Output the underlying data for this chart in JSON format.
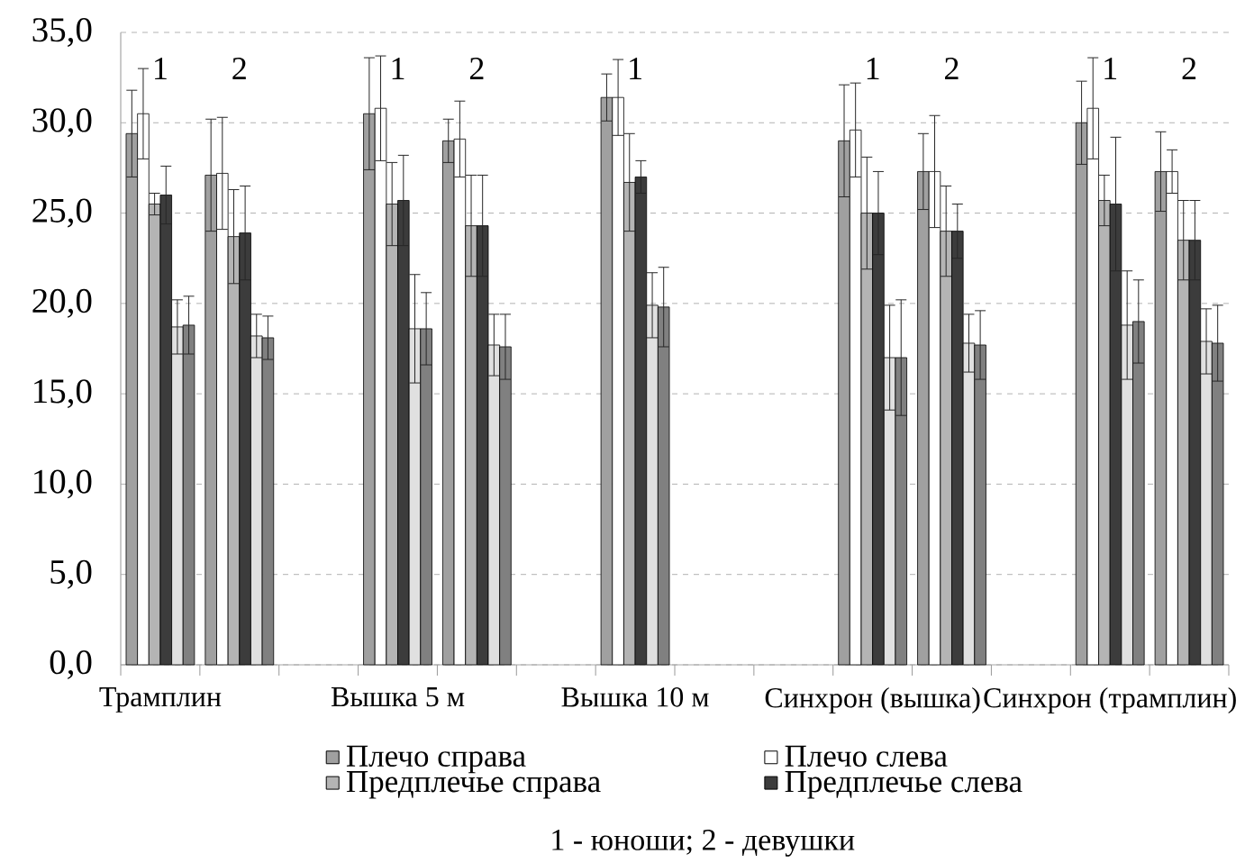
{
  "chart_data": {
    "type": "bar",
    "categories": [
      "Трамплин",
      null,
      null,
      "Вышка 5 м",
      null,
      null,
      "Вышка 10 м",
      null,
      null,
      "Синхрон (вышка)",
      null,
      null,
      "Синхрон (трамплин)",
      null
    ],
    "series": [
      {
        "name": "Плечо справа",
        "color": "#a0a0a0",
        "values": [
          29.4,
          27.1,
          null,
          30.5,
          29.0,
          null,
          31.4,
          null,
          null,
          29.0,
          27.3,
          null,
          30.0,
          27.3
        ],
        "errors": [
          2.4,
          3.1,
          null,
          3.1,
          1.2,
          null,
          1.3,
          null,
          null,
          3.1,
          2.1,
          null,
          2.3,
          2.2
        ]
      },
      {
        "name": "Плечо слева",
        "color": "#ffffff",
        "values": [
          30.5,
          27.2,
          null,
          30.8,
          29.1,
          null,
          31.4,
          null,
          null,
          29.6,
          27.3,
          null,
          30.8,
          27.3
        ],
        "errors": [
          2.5,
          3.1,
          null,
          2.9,
          2.1,
          null,
          2.1,
          null,
          null,
          2.6,
          3.1,
          null,
          2.8,
          1.2
        ]
      },
      {
        "name": "Предплечье справа",
        "color": "#b4b4b4",
        "values": [
          25.5,
          23.7,
          null,
          25.5,
          24.3,
          null,
          26.7,
          null,
          null,
          25.0,
          24.0,
          null,
          25.7,
          23.5
        ],
        "errors": [
          0.6,
          2.6,
          null,
          2.3,
          2.8,
          null,
          2.7,
          null,
          null,
          3.1,
          2.5,
          null,
          1.4,
          2.2
        ]
      },
      {
        "name": "Предплечье слева",
        "color": "#3c3c3c",
        "values": [
          26.0,
          23.9,
          null,
          25.7,
          24.3,
          null,
          27.0,
          null,
          null,
          25.0,
          24.0,
          null,
          25.5,
          23.5
        ],
        "errors": [
          1.6,
          2.6,
          null,
          2.5,
          2.8,
          null,
          0.9,
          null,
          null,
          2.3,
          1.5,
          null,
          3.7,
          2.2
        ]
      },
      {
        "color": "#e0e0e0",
        "values": [
          18.7,
          18.2,
          null,
          18.6,
          17.7,
          null,
          19.9,
          null,
          null,
          17.0,
          17.8,
          null,
          18.8,
          17.9
        ],
        "errors": [
          1.5,
          1.2,
          null,
          3.0,
          1.7,
          null,
          1.8,
          null,
          null,
          2.9,
          1.6,
          null,
          3.0,
          1.8
        ]
      },
      {
        "color": "#808080",
        "values": [
          18.8,
          18.1,
          null,
          18.6,
          17.6,
          null,
          19.8,
          null,
          null,
          17.0,
          17.7,
          null,
          19.0,
          17.8
        ],
        "errors": [
          1.6,
          1.2,
          null,
          2.0,
          1.8,
          null,
          2.2,
          null,
          null,
          3.2,
          1.9,
          null,
          2.3,
          2.1
        ]
      }
    ],
    "ylim": [
      0,
      35
    ],
    "yticks": [
      {
        "value": 0,
        "label": "0,0"
      },
      {
        "value": 5,
        "label": "5,0"
      },
      {
        "value": 10,
        "label": "10,0"
      },
      {
        "value": 15,
        "label": "15,0"
      },
      {
        "value": 20,
        "label": "20,0"
      },
      {
        "value": 25,
        "label": "25,0"
      },
      {
        "value": 30,
        "label": "30,0"
      },
      {
        "value": 35,
        "label": "35,0"
      }
    ],
    "grid": "y",
    "legend": "bottom",
    "annotations": [
      "1 - юноши; 2 - девушки",
      "1",
      "2",
      "1",
      "2",
      "1",
      "1",
      "2",
      "1",
      "2"
    ]
  }
}
